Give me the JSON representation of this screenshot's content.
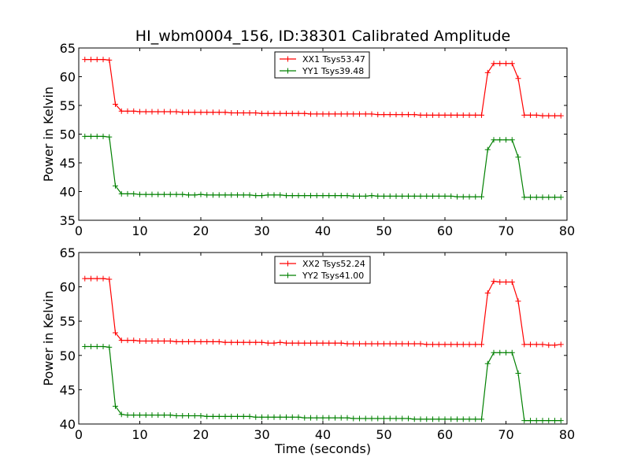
{
  "chart_data": [
    {
      "type": "line",
      "title": "HI_wbm0004_156, ID:38301 Calibrated Amplitude",
      "xlabel": "",
      "ylabel": "Power in Kelvin",
      "xlim": [
        0,
        80
      ],
      "ylim": [
        35,
        65
      ],
      "xticks": [
        0,
        10,
        20,
        30,
        40,
        50,
        60,
        70,
        80
      ],
      "yticks": [
        35,
        40,
        45,
        50,
        55,
        60,
        65
      ],
      "grid": false,
      "legend_position": "top-center",
      "series": [
        {
          "name": "XX1 Tsys53.47",
          "color": "#ff0000",
          "x": [
            1,
            2,
            3,
            4,
            5,
            6,
            7,
            8,
            9,
            10,
            11,
            12,
            13,
            14,
            15,
            16,
            17,
            18,
            19,
            20,
            21,
            22,
            23,
            24,
            25,
            26,
            27,
            28,
            29,
            30,
            31,
            32,
            33,
            34,
            35,
            36,
            37,
            38,
            39,
            40,
            41,
            42,
            43,
            44,
            45,
            46,
            47,
            48,
            49,
            50,
            51,
            52,
            53,
            54,
            55,
            56,
            57,
            58,
            59,
            60,
            61,
            62,
            63,
            64,
            65,
            66,
            67,
            68,
            69,
            70,
            71,
            72,
            73,
            74,
            75,
            76,
            77,
            78,
            79
          ],
          "values": [
            63.0,
            63.0,
            63.0,
            63.0,
            62.9,
            55.2,
            54.0,
            54.0,
            54.0,
            53.9,
            53.9,
            53.9,
            53.9,
            53.9,
            53.9,
            53.9,
            53.8,
            53.8,
            53.8,
            53.8,
            53.8,
            53.8,
            53.8,
            53.8,
            53.7,
            53.7,
            53.7,
            53.7,
            53.7,
            53.6,
            53.6,
            53.6,
            53.6,
            53.6,
            53.6,
            53.6,
            53.6,
            53.5,
            53.5,
            53.5,
            53.5,
            53.5,
            53.5,
            53.5,
            53.5,
            53.5,
            53.5,
            53.5,
            53.4,
            53.4,
            53.4,
            53.4,
            53.4,
            53.4,
            53.4,
            53.3,
            53.3,
            53.3,
            53.3,
            53.3,
            53.3,
            53.3,
            53.3,
            53.3,
            53.3,
            53.3,
            60.7,
            62.3,
            62.3,
            62.3,
            62.3,
            59.7,
            53.3,
            53.3,
            53.3,
            53.2,
            53.2,
            53.2,
            53.2
          ]
        },
        {
          "name": "YY1 Tsys39.48",
          "color": "#008000",
          "x": [
            1,
            2,
            3,
            4,
            5,
            6,
            7,
            8,
            9,
            10,
            11,
            12,
            13,
            14,
            15,
            16,
            17,
            18,
            19,
            20,
            21,
            22,
            23,
            24,
            25,
            26,
            27,
            28,
            29,
            30,
            31,
            32,
            33,
            34,
            35,
            36,
            37,
            38,
            39,
            40,
            41,
            42,
            43,
            44,
            45,
            46,
            47,
            48,
            49,
            50,
            51,
            52,
            53,
            54,
            55,
            56,
            57,
            58,
            59,
            60,
            61,
            62,
            63,
            64,
            65,
            66,
            67,
            68,
            69,
            70,
            71,
            72,
            73,
            74,
            75,
            76,
            77,
            78,
            79
          ],
          "values": [
            49.6,
            49.6,
            49.6,
            49.6,
            49.5,
            41.0,
            39.6,
            39.6,
            39.6,
            39.5,
            39.5,
            39.5,
            39.5,
            39.5,
            39.5,
            39.5,
            39.5,
            39.4,
            39.4,
            39.5,
            39.4,
            39.4,
            39.4,
            39.4,
            39.4,
            39.4,
            39.4,
            39.4,
            39.3,
            39.3,
            39.4,
            39.4,
            39.4,
            39.3,
            39.3,
            39.3,
            39.3,
            39.3,
            39.3,
            39.3,
            39.3,
            39.3,
            39.3,
            39.3,
            39.2,
            39.2,
            39.2,
            39.3,
            39.2,
            39.2,
            39.2,
            39.2,
            39.2,
            39.2,
            39.2,
            39.2,
            39.2,
            39.2,
            39.2,
            39.2,
            39.2,
            39.1,
            39.1,
            39.1,
            39.1,
            39.1,
            47.3,
            49.0,
            49.0,
            49.0,
            49.0,
            46.0,
            39.0,
            39.0,
            39.0,
            39.0,
            39.0,
            39.0,
            39.0
          ]
        }
      ]
    },
    {
      "type": "line",
      "title": "",
      "xlabel": "Time (seconds)",
      "ylabel": "Power in Kelvin",
      "xlim": [
        0,
        80
      ],
      "ylim": [
        40,
        65
      ],
      "xticks": [
        0,
        10,
        20,
        30,
        40,
        50,
        60,
        70,
        80
      ],
      "yticks": [
        40,
        45,
        50,
        55,
        60,
        65
      ],
      "grid": false,
      "legend_position": "top-center",
      "series": [
        {
          "name": "XX2 Tsys52.24",
          "color": "#ff0000",
          "x": [
            1,
            2,
            3,
            4,
            5,
            6,
            7,
            8,
            9,
            10,
            11,
            12,
            13,
            14,
            15,
            16,
            17,
            18,
            19,
            20,
            21,
            22,
            23,
            24,
            25,
            26,
            27,
            28,
            29,
            30,
            31,
            32,
            33,
            34,
            35,
            36,
            37,
            38,
            39,
            40,
            41,
            42,
            43,
            44,
            45,
            46,
            47,
            48,
            49,
            50,
            51,
            52,
            53,
            54,
            55,
            56,
            57,
            58,
            59,
            60,
            61,
            62,
            63,
            64,
            65,
            66,
            67,
            68,
            69,
            70,
            71,
            72,
            73,
            74,
            75,
            76,
            77,
            78,
            79
          ],
          "values": [
            61.2,
            61.2,
            61.2,
            61.2,
            61.1,
            53.3,
            52.2,
            52.2,
            52.2,
            52.1,
            52.1,
            52.1,
            52.1,
            52.1,
            52.1,
            52.0,
            52.0,
            52.0,
            52.0,
            52.0,
            52.0,
            52.0,
            52.0,
            51.9,
            51.9,
            51.9,
            51.9,
            51.9,
            51.9,
            51.9,
            51.8,
            51.8,
            51.9,
            51.8,
            51.8,
            51.8,
            51.8,
            51.8,
            51.8,
            51.8,
            51.8,
            51.8,
            51.8,
            51.7,
            51.7,
            51.7,
            51.7,
            51.7,
            51.7,
            51.7,
            51.7,
            51.7,
            51.7,
            51.7,
            51.7,
            51.7,
            51.6,
            51.6,
            51.6,
            51.6,
            51.6,
            51.6,
            51.6,
            51.6,
            51.6,
            51.6,
            59.1,
            60.8,
            60.7,
            60.7,
            60.7,
            57.9,
            51.6,
            51.6,
            51.6,
            51.6,
            51.5,
            51.5,
            51.6
          ]
        },
        {
          "name": "YY2 Tsys41.00",
          "color": "#008000",
          "x": [
            1,
            2,
            3,
            4,
            5,
            6,
            7,
            8,
            9,
            10,
            11,
            12,
            13,
            14,
            15,
            16,
            17,
            18,
            19,
            20,
            21,
            22,
            23,
            24,
            25,
            26,
            27,
            28,
            29,
            30,
            31,
            32,
            33,
            34,
            35,
            36,
            37,
            38,
            39,
            40,
            41,
            42,
            43,
            44,
            45,
            46,
            47,
            48,
            49,
            50,
            51,
            52,
            53,
            54,
            55,
            56,
            57,
            58,
            59,
            60,
            61,
            62,
            63,
            64,
            65,
            66,
            67,
            68,
            69,
            70,
            71,
            72,
            73,
            74,
            75,
            76,
            77,
            78,
            79
          ],
          "values": [
            51.3,
            51.3,
            51.3,
            51.3,
            51.2,
            42.6,
            41.4,
            41.3,
            41.3,
            41.3,
            41.3,
            41.3,
            41.3,
            41.3,
            41.3,
            41.2,
            41.2,
            41.2,
            41.2,
            41.2,
            41.1,
            41.1,
            41.1,
            41.1,
            41.1,
            41.1,
            41.1,
            41.1,
            41.0,
            41.0,
            41.0,
            41.0,
            41.0,
            41.0,
            41.0,
            41.0,
            40.9,
            40.9,
            40.9,
            40.9,
            40.9,
            40.9,
            40.9,
            40.9,
            40.8,
            40.8,
            40.8,
            40.8,
            40.8,
            40.8,
            40.8,
            40.8,
            40.8,
            40.8,
            40.7,
            40.7,
            40.7,
            40.7,
            40.7,
            40.7,
            40.7,
            40.7,
            40.7,
            40.7,
            40.7,
            40.7,
            48.8,
            50.4,
            50.4,
            50.4,
            50.4,
            47.4,
            40.5,
            40.5,
            40.5,
            40.5,
            40.5,
            40.5,
            40.5
          ]
        }
      ]
    }
  ]
}
